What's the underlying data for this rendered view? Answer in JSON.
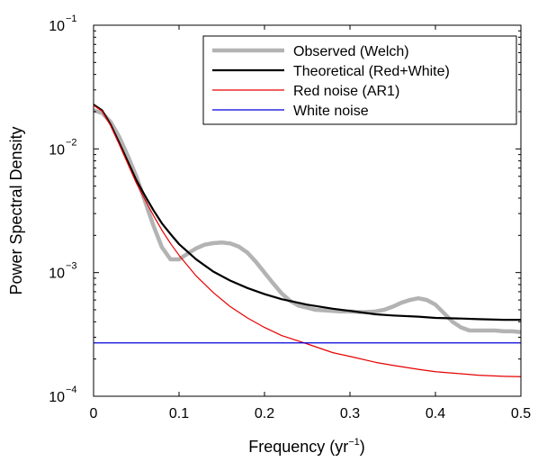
{
  "chart_data": {
    "type": "line",
    "title": "",
    "xlabel": "Frequency (yr",
    "xlabel_exp": "−1",
    "xlabel_close": ")",
    "ylabel": "Power Spectral Density",
    "xlim": [
      0,
      0.5
    ],
    "ylim": [
      0.0001,
      0.1
    ],
    "yscale": "log",
    "grid": false,
    "legend_position": "top-right",
    "x_ticks": [
      {
        "value": 0,
        "label": "0"
      },
      {
        "value": 0.1,
        "label": "0.1"
      },
      {
        "value": 0.2,
        "label": "0.2"
      },
      {
        "value": 0.3,
        "label": "0.3"
      },
      {
        "value": 0.4,
        "label": "0.4"
      },
      {
        "value": 0.5,
        "label": "0.5"
      }
    ],
    "y_ticks": [
      {
        "value": 0.0001,
        "base": "10",
        "exp": "−4"
      },
      {
        "value": 0.001,
        "base": "10",
        "exp": "−3"
      },
      {
        "value": 0.01,
        "base": "10",
        "exp": "−2"
      },
      {
        "value": 0.1,
        "base": "10",
        "exp": "−1"
      }
    ],
    "series": [
      {
        "name": "Observed (Welch)",
        "color": "#b3b3b3",
        "width": 4.5,
        "x": [
          0,
          0.01,
          0.02,
          0.03,
          0.04,
          0.05,
          0.06,
          0.07,
          0.08,
          0.09,
          0.1,
          0.11,
          0.12,
          0.13,
          0.14,
          0.15,
          0.16,
          0.17,
          0.18,
          0.19,
          0.2,
          0.21,
          0.22,
          0.23,
          0.24,
          0.25,
          0.26,
          0.27,
          0.28,
          0.29,
          0.3,
          0.31,
          0.32,
          0.33,
          0.34,
          0.35,
          0.36,
          0.37,
          0.38,
          0.39,
          0.4,
          0.41,
          0.42,
          0.43,
          0.44,
          0.45,
          0.46,
          0.47,
          0.48,
          0.49,
          0.5
        ],
        "y": [
          0.0205,
          0.0195,
          0.0165,
          0.0125,
          0.0088,
          0.006,
          0.0038,
          0.0024,
          0.0016,
          0.00128,
          0.00128,
          0.00142,
          0.00157,
          0.00168,
          0.00173,
          0.00175,
          0.00172,
          0.00162,
          0.00145,
          0.00122,
          0.001,
          0.00082,
          0.00068,
          0.00059,
          0.00054,
          0.00052,
          0.0005,
          0.000495,
          0.00049,
          0.000485,
          0.000485,
          0.00048,
          0.00048,
          0.000485,
          0.0005,
          0.00053,
          0.00057,
          0.0006,
          0.00062,
          0.0006,
          0.00055,
          0.00047,
          0.0004,
          0.00036,
          0.00034,
          0.00034,
          0.00034,
          0.00034,
          0.000335,
          0.000335,
          0.00033
        ]
      },
      {
        "name": "Theoretical (Red+White)",
        "color": "#000000",
        "width": 2.2,
        "x": [
          0,
          0.01,
          0.02,
          0.03,
          0.04,
          0.05,
          0.06,
          0.07,
          0.08,
          0.09,
          0.1,
          0.12,
          0.14,
          0.16,
          0.18,
          0.2,
          0.22,
          0.25,
          0.28,
          0.3,
          0.33,
          0.35,
          0.38,
          0.4,
          0.43,
          0.45,
          0.48,
          0.5
        ],
        "y": [
          0.0228,
          0.0205,
          0.0157,
          0.0112,
          0.0079,
          0.0056,
          0.0042,
          0.0032,
          0.0025,
          0.00205,
          0.0017,
          0.00128,
          0.00102,
          0.00086,
          0.00075,
          0.00067,
          0.00061,
          0.00055,
          0.00051,
          0.00049,
          0.00046,
          0.00045,
          0.00044,
          0.00043,
          0.000425,
          0.00042,
          0.000415,
          0.000415
        ]
      },
      {
        "name": "Red noise (AR1)",
        "color": "#e60000",
        "width": 1.2,
        "x": [
          0,
          0.01,
          0.02,
          0.03,
          0.04,
          0.05,
          0.06,
          0.07,
          0.08,
          0.09,
          0.1,
          0.12,
          0.14,
          0.16,
          0.18,
          0.2,
          0.22,
          0.25,
          0.28,
          0.3,
          0.33,
          0.35,
          0.38,
          0.4,
          0.43,
          0.45,
          0.48,
          0.5
        ],
        "y": [
          0.0225,
          0.0202,
          0.0154,
          0.0109,
          0.0076,
          0.0053,
          0.0039,
          0.0029,
          0.0022,
          0.00172,
          0.00138,
          0.00094,
          0.00069,
          0.00053,
          0.00043,
          0.00036,
          0.00031,
          0.000265,
          0.000225,
          0.00021,
          0.000188,
          0.000178,
          0.000165,
          0.000158,
          0.000152,
          0.000148,
          0.000145,
          0.000144
        ]
      },
      {
        "name": "White noise",
        "color": "#0000dd",
        "width": 1.2,
        "x": [
          0,
          0.5
        ],
        "y": [
          0.00027,
          0.00027
        ]
      }
    ]
  }
}
